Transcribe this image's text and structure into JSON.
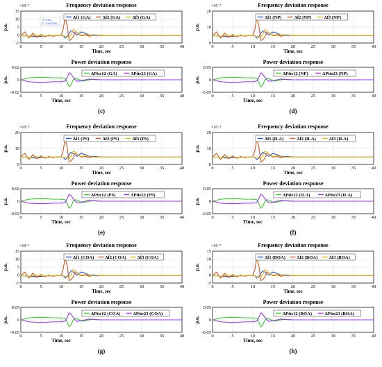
{
  "colors": {
    "blue": "#1f4fff",
    "orange": "#d2561c",
    "yellow": "#e6b800",
    "green": "#33cc22",
    "purple": "#9b30ff",
    "grid": "#d8d8d8",
    "legend_box": "#000000"
  },
  "panels": [
    {
      "caption": "(c)",
      "freq": {
        "title": "Frequency deviation response",
        "exponent": "×10⁻³",
        "ylabel": "p.u.",
        "xlabel": "Time, sec",
        "legend": [
          "Δf1 (GA)",
          "Δf2 (GA)",
          "Δf3 (GA)"
        ],
        "yticks": [
          "15",
          "10",
          "5",
          "0",
          "-5"
        ],
        "datatip": [
          "X 9.333",
          "Y -0.000706"
        ]
      },
      "tie": {
        "title": "Power deviation response",
        "ylabel": "p.u.",
        "xlabel": "Time, sec",
        "legend": [
          "ΔPtie12 (GA)",
          "ΔPtie23 (GA)"
        ],
        "yticks": [
          "0.02",
          "0",
          "-0.02"
        ]
      }
    },
    {
      "caption": "(d)",
      "freq": {
        "title": "Frequency deviation response",
        "exponent": "×10⁻³",
        "ylabel": "p.u.",
        "xlabel": "Time, sec",
        "legend": [
          "Δf1 (NP)",
          "Δf2 (NP)",
          "Δf3 (NP)"
        ],
        "yticks": [
          "20",
          "10",
          "0"
        ]
      },
      "tie": {
        "title": "Power deviation response",
        "ylabel": "p.u.",
        "xlabel": "Time, sec",
        "legend": [
          "ΔPtie12 (NP)",
          "ΔPtie23 (NP)"
        ],
        "yticks": [
          "0.05",
          "0",
          "-0.05"
        ]
      }
    },
    {
      "caption": "(e)",
      "freq": {
        "title": "Frequency deviation response",
        "exponent": "×10⁻³",
        "ylabel": "p.u.",
        "xlabel": "Time, sec",
        "legend": [
          "Δf1 (PS)",
          "Δf2 (PS)",
          "Δf3 (PS)"
        ],
        "yticks": [
          "20",
          "10",
          "0"
        ]
      },
      "tie": {
        "title": "Power deviation response",
        "ylabel": "p.u.",
        "xlabel": "Time, sec",
        "legend": [
          "ΔPtie12 (PS)",
          "ΔPtie23 (PS)"
        ],
        "yticks": [
          "0.02",
          "0",
          "-0.02"
        ]
      }
    },
    {
      "caption": "(f)",
      "freq": {
        "title": "Frequency deviation response",
        "exponent": "×10⁻³",
        "ylabel": "p.u.",
        "xlabel": "Time, sec",
        "legend": [
          "Δf1 (ILA)",
          "Δf2 (ILA)",
          "Δf3 (ILA)"
        ],
        "yticks": [
          "20",
          "10",
          "0"
        ]
      },
      "tie": {
        "title": "Power deviation response",
        "ylabel": "p.u.",
        "xlabel": "Time, sec",
        "legend": [
          "ΔPtie12 (ILA)",
          "ΔPtie23 (ILA)"
        ],
        "yticks": [
          "0.05",
          "0",
          "-0.05"
        ]
      }
    },
    {
      "caption": "(g)",
      "freq": {
        "title": "Frequency deviation response",
        "exponent": "×10⁻³",
        "ylabel": "p.u.",
        "xlabel": "Time, sec",
        "legend": [
          "Δf1 (COA)",
          "Δf2 (COA)",
          "Δf3 (COA)"
        ],
        "yticks": [
          "15",
          "10",
          "5",
          "0",
          "-5"
        ]
      },
      "tie": {
        "title": "Power deviation response",
        "ylabel": "p.u.",
        "xlabel": "Time, sec",
        "legend": [
          "ΔPtie12 (COA)",
          "ΔPtie23 (COA)"
        ],
        "yticks": [
          "0.05",
          "0",
          "-0.05"
        ]
      }
    },
    {
      "caption": "(h)",
      "freq": {
        "title": "Frequency deviation response",
        "exponent": "×10⁻³",
        "ylabel": "p.u.",
        "xlabel": "Time, sec",
        "legend": [
          "Δf1 (BOA)",
          "Δf2 (BOA)",
          "Δf3 (BOA)"
        ],
        "yticks": [
          "15",
          "10",
          "5",
          "0",
          "-5"
        ]
      },
      "tie": {
        "title": "Power deviation response",
        "ylabel": "p.u.",
        "xlabel": "Time, sec",
        "legend": [
          "ΔPtie12 (BOA)",
          "ΔPtie23 (BOA)"
        ],
        "yticks": [
          "0.05",
          "0",
          "-0.05"
        ]
      }
    }
  ],
  "chart_data": {
    "type": "line",
    "x_range": [
      0,
      40
    ],
    "xticks": [
      0,
      5,
      10,
      15,
      20,
      25,
      30,
      35,
      40
    ],
    "grid": true,
    "legend_placement": "top-right",
    "freq_ylim_e-3": [
      -6,
      20
    ],
    "freq_series": [
      {
        "name_suffix": "Δf1",
        "x": [
          0,
          2,
          4,
          6,
          8,
          10,
          10.5,
          11,
          11.5,
          12,
          12.5,
          13,
          13.5,
          14,
          14.5,
          15,
          16,
          17,
          18,
          19,
          20,
          22,
          25,
          30,
          40
        ],
        "y": [
          0,
          -0.5,
          -0.8,
          -0.3,
          0,
          0,
          -0.2,
          -2,
          -1,
          2,
          4,
          3,
          1.5,
          0.5,
          2,
          3,
          2,
          0.5,
          0.6,
          0.3,
          0,
          0,
          0,
          0,
          0
        ]
      },
      {
        "name_suffix": "Δf2",
        "x": [
          0,
          1,
          2,
          3,
          4,
          5,
          6,
          7,
          8,
          9,
          10,
          10.5,
          11,
          11.5,
          12,
          12.5,
          13,
          13.5,
          14,
          14.5,
          15,
          16,
          17,
          18,
          19,
          20,
          22,
          25,
          30,
          40
        ],
        "y": [
          0,
          3,
          -2,
          2,
          -1.5,
          1,
          -1,
          0.5,
          -0.5,
          0.2,
          0,
          5,
          15,
          8,
          -4,
          -3,
          -1,
          3,
          2.5,
          1,
          0,
          0.5,
          -0.5,
          0.3,
          -0.2,
          0.1,
          0,
          0,
          0,
          0
        ]
      },
      {
        "name_suffix": "Δf3",
        "x": [
          0,
          2,
          4,
          6,
          8,
          10,
          11,
          12,
          12.5,
          13,
          13.5,
          14,
          15,
          16,
          17,
          18,
          20,
          22,
          25,
          30,
          40
        ],
        "y": [
          0,
          -0.5,
          0.3,
          -0.3,
          0,
          0,
          -0.5,
          -1,
          1,
          5,
          4,
          2,
          0.5,
          1,
          0.3,
          0,
          0,
          0,
          0,
          0,
          0
        ]
      }
    ],
    "tie_ylim": [
      -0.05,
      0.05
    ],
    "tie_series": [
      {
        "name_suffix": "ΔPtie12",
        "x": [
          0,
          2,
          4,
          6,
          8,
          10,
          11,
          11.5,
          12,
          12.5,
          13,
          13.5,
          14,
          14.5,
          15,
          16,
          17,
          18,
          19,
          20,
          22,
          25,
          30,
          40
        ],
        "y": [
          0,
          0.008,
          0.01,
          0.01,
          0.008,
          0.008,
          0.006,
          -0.01,
          -0.028,
          -0.02,
          0,
          0.006,
          0.004,
          0,
          -0.005,
          -0.004,
          0,
          0.002,
          0,
          0,
          0,
          0,
          0,
          0
        ]
      },
      {
        "name_suffix": "ΔPtie23",
        "x": [
          0,
          2,
          4,
          6,
          8,
          10,
          11,
          11.5,
          12,
          12.5,
          13,
          13.5,
          14,
          15,
          16,
          17,
          18,
          20,
          22,
          25,
          30,
          40
        ],
        "y": [
          0,
          -0.008,
          -0.01,
          -0.01,
          -0.008,
          -0.008,
          -0.005,
          0.01,
          0.028,
          0.022,
          0.01,
          0,
          -0.006,
          -0.004,
          0,
          0.003,
          0.002,
          0,
          0,
          0,
          0,
          0
        ]
      }
    ]
  }
}
